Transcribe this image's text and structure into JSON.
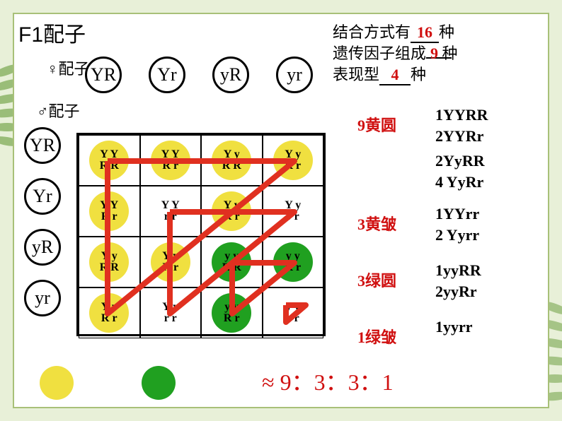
{
  "title": "F1配子",
  "female_label": "♀配子",
  "male_label": "♂配子",
  "info": {
    "line1_prefix": "结合方式有",
    "line1_value": "16",
    "line1_suffix": "种",
    "line2_prefix": "遗传因子组成",
    "line2_value": "9",
    "line2_suffix": "种",
    "line3_prefix": "表现型",
    "line3_value": "4",
    "line3_suffix": "种"
  },
  "gametes": {
    "col": [
      "YR",
      "Yr",
      "yR",
      "yr"
    ],
    "row": [
      "YR",
      "Yr",
      "yR",
      "yr"
    ]
  },
  "punnett": {
    "rows": [
      [
        {
          "l1": "Y Y",
          "l2": "R R",
          "shape": "round",
          "color": "yellow"
        },
        {
          "l1": "Y Y",
          "l2": "R r",
          "shape": "round",
          "color": "yellow"
        },
        {
          "l1": "Y y",
          "l2": "R R",
          "shape": "round",
          "color": "yellow"
        },
        {
          "l1": "Y y",
          "l2": "R r",
          "shape": "round",
          "color": "yellow"
        }
      ],
      [
        {
          "l1": "Y Y",
          "l2": "R r",
          "shape": "round",
          "color": "yellow"
        },
        {
          "l1": "Y Y",
          "l2": "r r",
          "shape": "wrinkled",
          "color": "yellow"
        },
        {
          "l1": "Y y",
          "l2": "R r",
          "shape": "round",
          "color": "yellow"
        },
        {
          "l1": "Y y",
          "l2": "r r",
          "shape": "wrinkled",
          "color": "yellow"
        }
      ],
      [
        {
          "l1": "Y y",
          "l2": "R R",
          "shape": "round",
          "color": "yellow"
        },
        {
          "l1": "Y y",
          "l2": "R r",
          "shape": "round",
          "color": "yellow"
        },
        {
          "l1": "y y",
          "l2": "R R",
          "shape": "round",
          "color": "green"
        },
        {
          "l1": "y y",
          "l2": "R r",
          "shape": "round",
          "color": "green"
        }
      ],
      [
        {
          "l1": "Y y",
          "l2": "R r",
          "shape": "round",
          "color": "yellow"
        },
        {
          "l1": "Y y",
          "l2": "r r",
          "shape": "wrinkled",
          "color": "yellow"
        },
        {
          "l1": "y y",
          "l2": "R r",
          "shape": "round",
          "color": "green"
        },
        {
          "l1": "y y",
          "l2": "r r",
          "shape": "wrinkled",
          "color": "green"
        }
      ]
    ]
  },
  "colors": {
    "yellow": "#f0e040",
    "green": "#20a020",
    "red_text": "#d01010",
    "black": "#000000",
    "overlay_red": "#e03020",
    "overlay_stroke_width": 8
  },
  "phenotypes": [
    {
      "count": "9",
      "name": "黄圆",
      "genotypes": [
        "1YYRR",
        "2YYRr",
        "2YyRR",
        "4 YyRr"
      ]
    },
    {
      "count": "3",
      "name": "黄皱",
      "genotypes": [
        "1YYrr",
        "2 Yyrr"
      ]
    },
    {
      "count": "3",
      "name": "绿圆",
      "genotypes": [
        "1yyRR",
        "2yyRr"
      ]
    },
    {
      "count": "1",
      "name": "绿皱",
      "genotypes": [
        "1yyrr"
      ]
    }
  ],
  "ratio": "≈ 9：3：3：1",
  "legend_shapes": [
    {
      "shape": "round",
      "color": "yellow"
    },
    {
      "shape": "wrinkled",
      "color": "yellow"
    },
    {
      "shape": "round",
      "color": "green"
    },
    {
      "shape": "wrinkled",
      "color": "green"
    }
  ],
  "overlay_paths": [
    "M 44 40 L 308 40 L 44 256 L 44 40",
    "M 132 112 L 308 112 L 132 256 L 132 112",
    "M 220 184 L 308 184 L 220 256 L 220 184",
    "M 296 244 L 324 244 L 296 268 L 296 244"
  ]
}
